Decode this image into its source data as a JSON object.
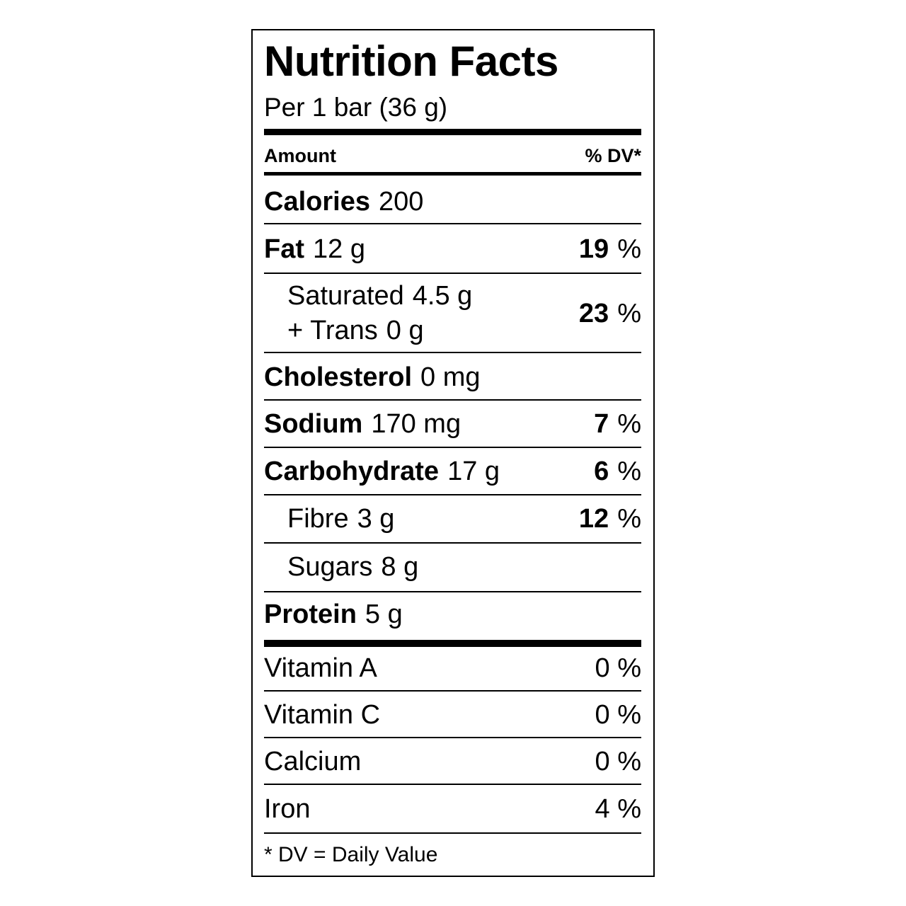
{
  "label": {
    "title": "Nutrition Facts",
    "serving": "Per 1 bar (36 g)",
    "header": {
      "amount": "Amount",
      "dv": "% DV*"
    },
    "calories": {
      "label": "Calories",
      "amount": "200"
    },
    "fat": {
      "label": "Fat",
      "amount": "12 g",
      "dv": "19",
      "unit": "%"
    },
    "saturated": {
      "label": "Saturated",
      "amount": "4.5 g",
      "label2": "+ Trans",
      "amount2": "0 g",
      "dv": "23",
      "unit": "%"
    },
    "cholesterol": {
      "label": "Cholesterol",
      "amount": "0 mg"
    },
    "sodium": {
      "label": "Sodium",
      "amount": "170 mg",
      "dv": "7",
      "unit": "%"
    },
    "carbohydrate": {
      "label": "Carbohydrate",
      "amount": "17 g",
      "dv": "6",
      "unit": "%"
    },
    "fibre": {
      "label": "Fibre",
      "amount": "3 g",
      "dv": "12",
      "unit": "%"
    },
    "sugars": {
      "label": "Sugars",
      "amount": "8 g"
    },
    "protein": {
      "label": "Protein",
      "amount": "5 g"
    },
    "vitamins": [
      {
        "label": "Vitamin A",
        "dv": "0 %"
      },
      {
        "label": "Vitamin C",
        "dv": "0 %"
      },
      {
        "label": "Calcium",
        "dv": "0 %"
      },
      {
        "label": "Iron",
        "dv": "4 %"
      }
    ],
    "footnote": "* DV = Daily Value"
  }
}
